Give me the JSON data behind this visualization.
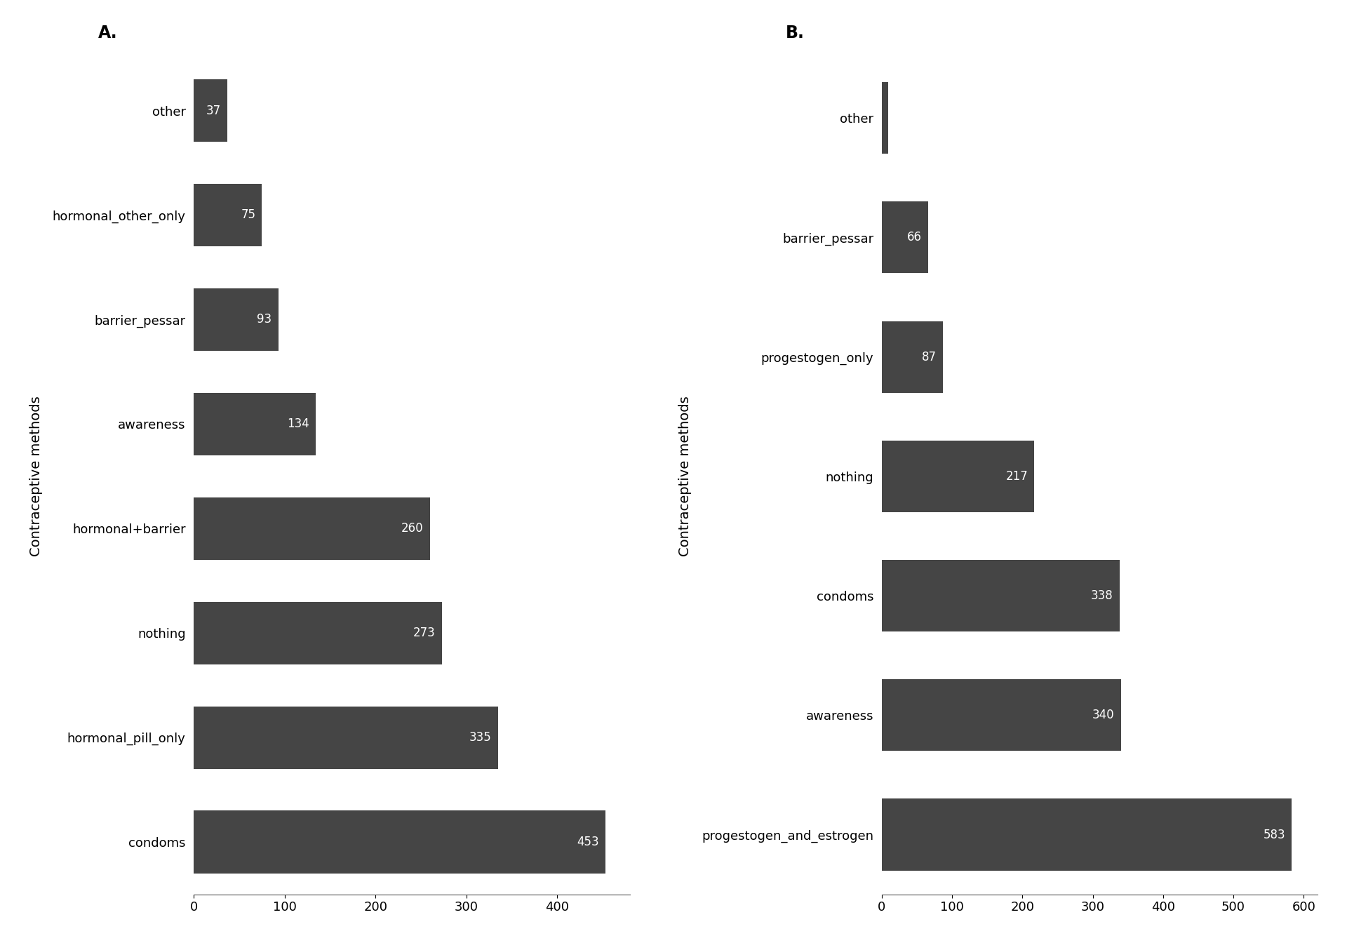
{
  "panel_A": {
    "categories": [
      "other",
      "hormonal_other_only",
      "barrier_pessar",
      "awareness",
      "hormonal+barrier",
      "nothing",
      "hormonal_pill_only",
      "condoms"
    ],
    "values": [
      37,
      75,
      93,
      134,
      260,
      273,
      335,
      453
    ],
    "ylabel": "Contraceptive methods",
    "xlim": [
      0,
      480
    ],
    "xticks": [
      0,
      100,
      200,
      300,
      400
    ],
    "label": "A."
  },
  "panel_B": {
    "categories": [
      "other",
      "barrier_pessar",
      "progestogen_only",
      "nothing",
      "condoms",
      "awareness",
      "progestogen_and_estrogen"
    ],
    "values": [
      9,
      66,
      87,
      217,
      338,
      340,
      583
    ],
    "ylabel": "Contraceptive methods",
    "xlim": [
      0,
      620
    ],
    "xticks": [
      0,
      100,
      200,
      300,
      400,
      500,
      600
    ],
    "label": "B."
  },
  "bar_color": "#454545",
  "text_color": "#ffffff",
  "background_color": "#ffffff",
  "bar_height": 0.6,
  "tick_fontsize": 13,
  "axis_label_fontsize": 14,
  "panel_label_fontsize": 17,
  "value_fontsize": 12
}
